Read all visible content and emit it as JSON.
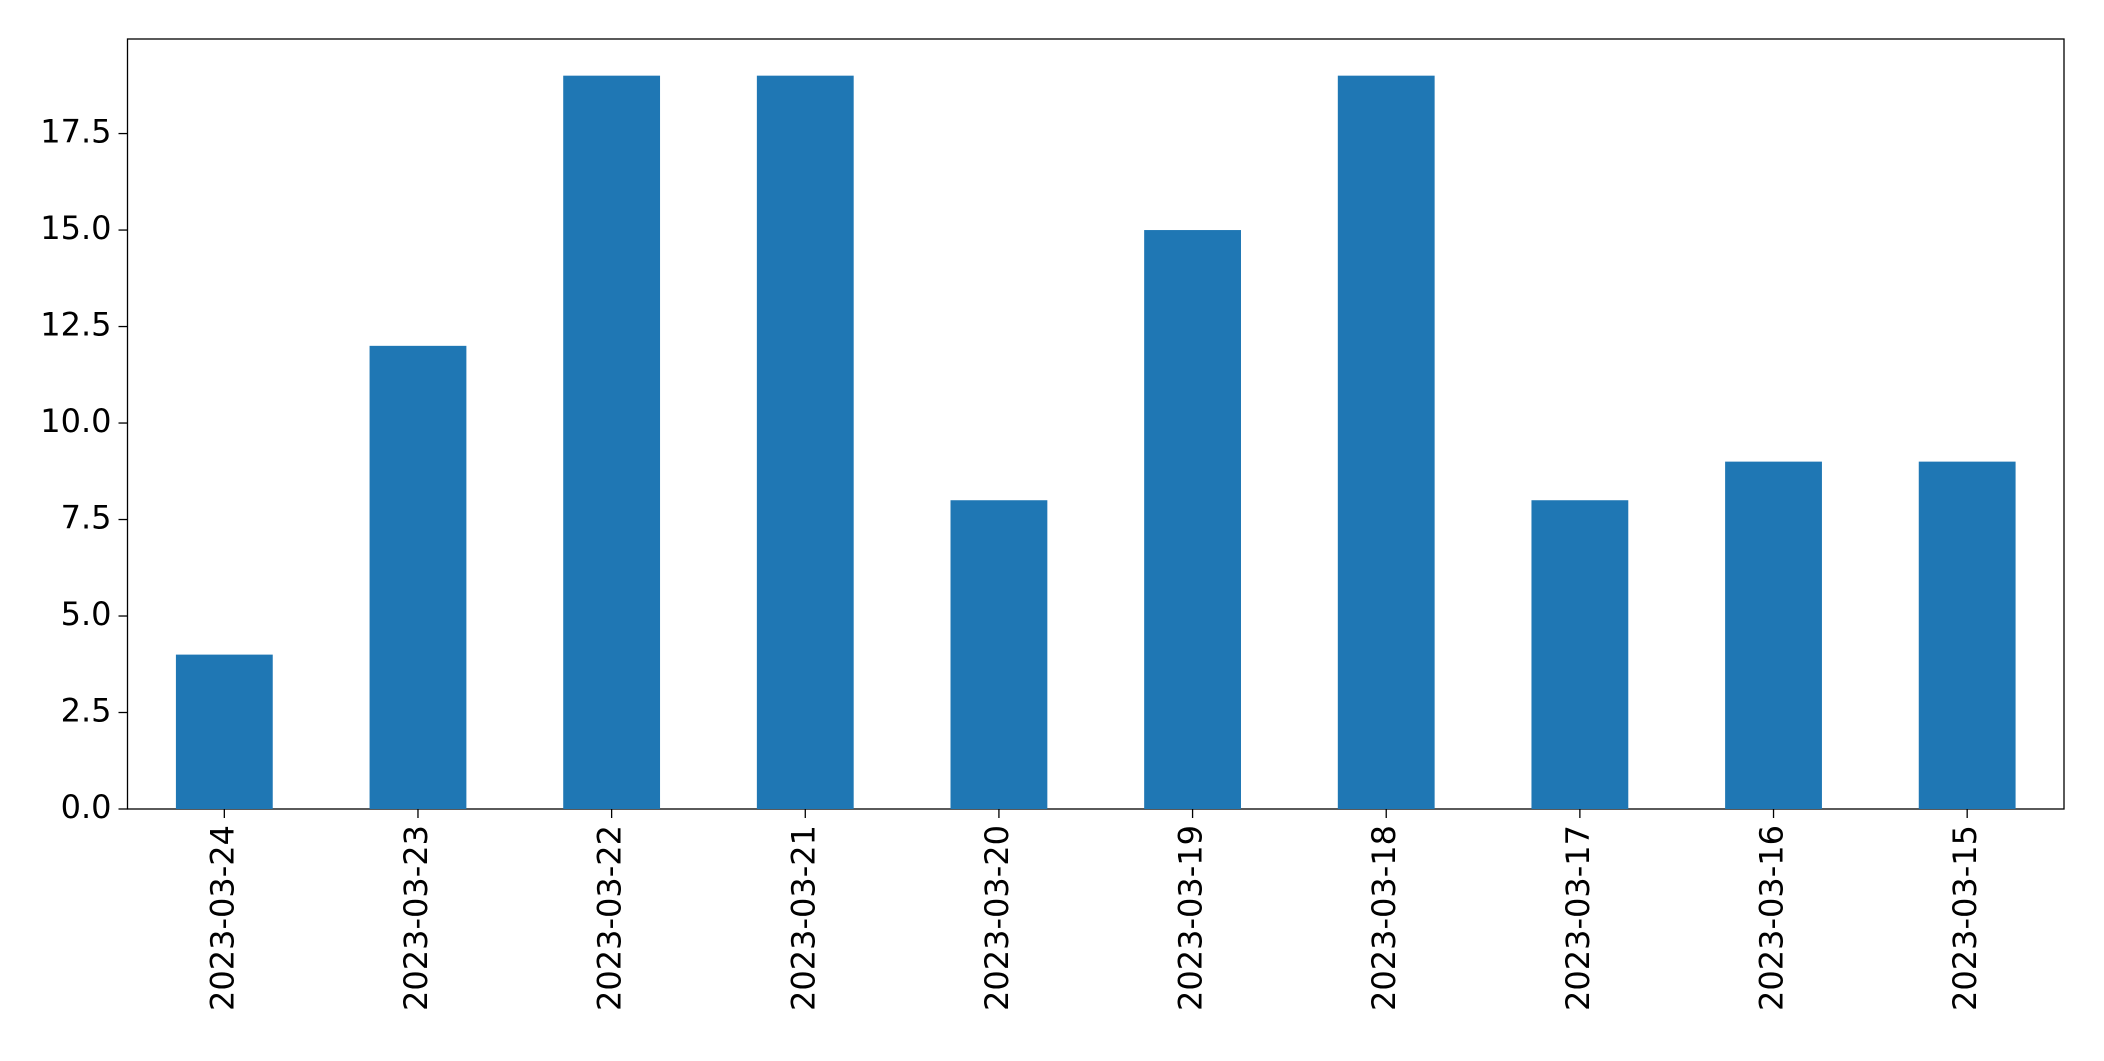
{
  "chart_data": {
    "type": "bar",
    "categories": [
      "2023-03-24",
      "2023-03-23",
      "2023-03-22",
      "2023-03-21",
      "2023-03-20",
      "2023-03-19",
      "2023-03-18",
      "2023-03-17",
      "2023-03-16",
      "2023-03-15"
    ],
    "values": [
      4,
      12,
      19,
      19,
      8,
      15,
      19,
      8,
      9,
      9
    ],
    "color": "#1f77b4",
    "ylim": [
      0,
      19.95
    ],
    "yticks": [
      {
        "value": 0,
        "label": "0.0"
      },
      2.5,
      {
        "value": 5,
        "label": "5.0"
      },
      7.5,
      {
        "value": 10,
        "label": "10.0"
      },
      12.5,
      {
        "value": 15,
        "label": "15.0"
      },
      17.5
    ],
    "grid": false
  }
}
